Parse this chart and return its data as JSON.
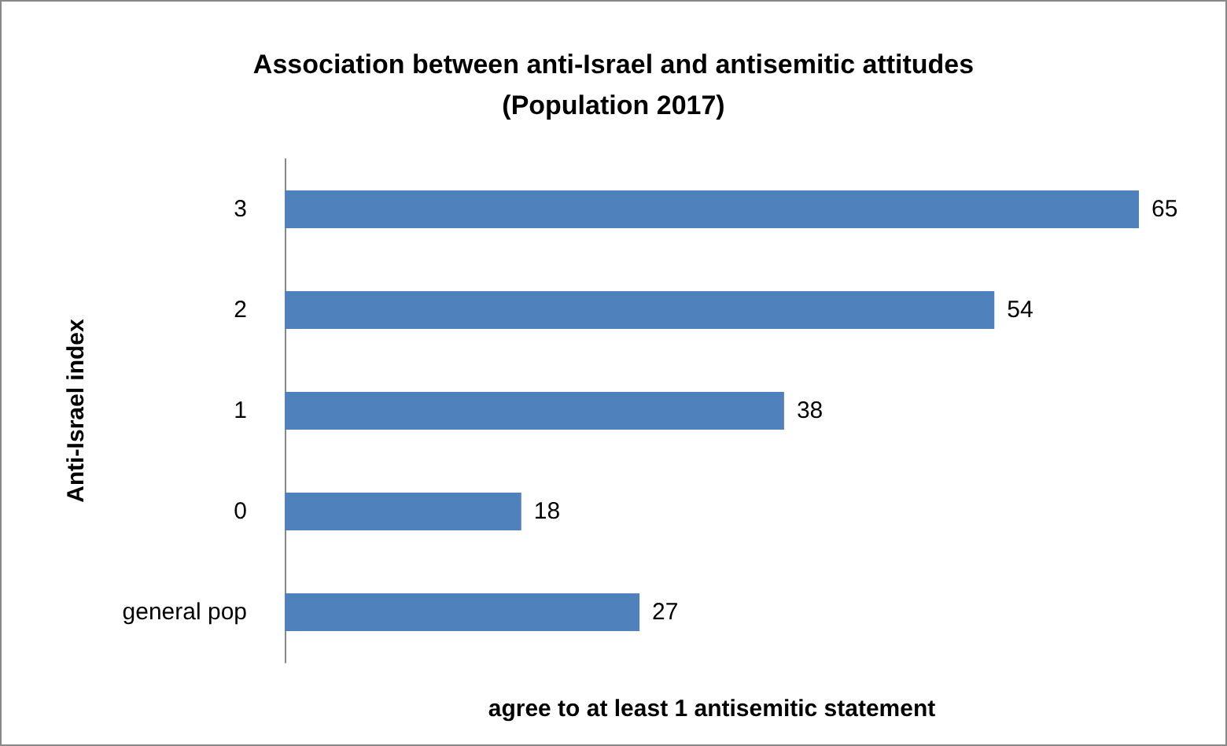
{
  "chart_data": {
    "type": "bar",
    "orientation": "horizontal",
    "title": "Association between anti-Israel and antisemitic attitudes\n(Population 2017)",
    "xlabel": "agree to at least 1 antisemitic statement",
    "ylabel": "Anti-Israel index",
    "categories": [
      "3",
      "2",
      "1",
      "0",
      "general pop"
    ],
    "values": [
      65,
      54,
      38,
      18,
      27
    ],
    "color": "#4f81bd",
    "data_labels": true,
    "tick_labels": "y",
    "grid": false
  }
}
